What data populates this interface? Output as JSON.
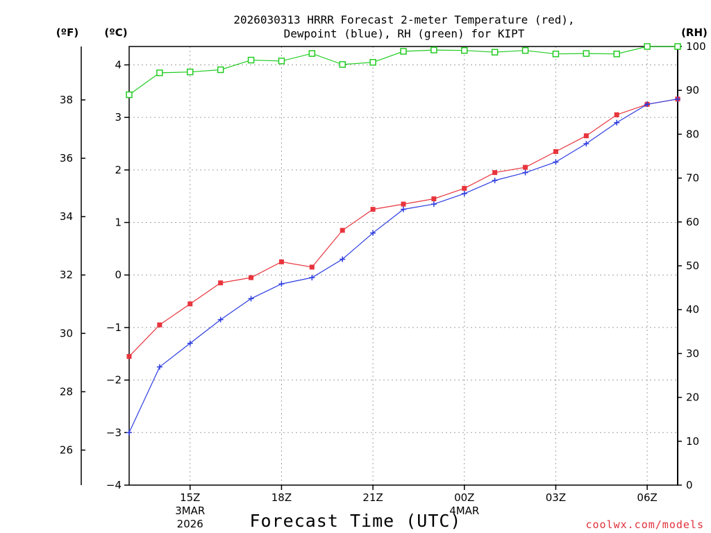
{
  "chart_data": {
    "type": "line",
    "title_lines": [
      "2026030313 HRRR Forecast 2-meter Temperature (red),",
      "Dewpoint (blue), RH (green) for KIPT"
    ],
    "xlabel": "Forecast Time (UTC)",
    "credit": "coolwx.com/models",
    "units": {
      "fahrenheit": "(ºF)",
      "celsius": "(ºC)",
      "rh": "(RH)"
    },
    "x_hours_utc": [
      13,
      14,
      15,
      16,
      17,
      18,
      19,
      20,
      21,
      22,
      23,
      24,
      25,
      26,
      27,
      28,
      29,
      30,
      31
    ],
    "x_range": [
      13,
      31
    ],
    "x_ticks": [
      {
        "hour": 15,
        "label": "15Z",
        "date": "3MAR",
        "year": "2026"
      },
      {
        "hour": 18,
        "label": "18Z"
      },
      {
        "hour": 21,
        "label": "21Z"
      },
      {
        "hour": 24,
        "label": "00Z",
        "date": "4MAR"
      },
      {
        "hour": 27,
        "label": "03Z"
      },
      {
        "hour": 30,
        "label": "06Z"
      }
    ],
    "axes": {
      "celsius": {
        "range": [
          -4,
          4.35
        ],
        "ticks": [
          -4,
          -3,
          -2,
          -1,
          0,
          1,
          2,
          3,
          4
        ]
      },
      "fahrenheit": {
        "ticks": [
          26,
          28,
          30,
          32,
          34,
          36,
          38
        ]
      },
      "rh": {
        "range": [
          0,
          100
        ],
        "ticks": [
          0,
          10,
          20,
          30,
          40,
          50,
          60,
          70,
          80,
          90,
          100
        ]
      }
    },
    "series": [
      {
        "name": "Temperature",
        "unit": "°C",
        "color": "#e8343c",
        "marker": "filled-square",
        "values": [
          -1.55,
          -0.95,
          -0.55,
          -0.15,
          -0.05,
          0.25,
          0.15,
          0.85,
          1.25,
          1.35,
          1.45,
          1.65,
          1.95,
          2.05,
          2.35,
          2.65,
          3.05,
          3.25,
          3.35
        ]
      },
      {
        "name": "Dewpoint",
        "unit": "°C",
        "color": "#2c3ce0",
        "marker": "plus",
        "values": [
          -3.0,
          -1.75,
          -1.3,
          -0.85,
          -0.45,
          -0.17,
          -0.05,
          0.3,
          0.8,
          1.25,
          1.35,
          1.55,
          1.8,
          1.95,
          2.15,
          2.5,
          2.9,
          3.25,
          3.35
        ]
      },
      {
        "name": "RH",
        "unit": "%",
        "color": "#22cc22",
        "marker": "open-square",
        "values": [
          89,
          94,
          94.2,
          94.7,
          96.9,
          96.7,
          98.4,
          95.9,
          96.4,
          98.9,
          99.2,
          99.1,
          98.7,
          99.1,
          98.3,
          98.4,
          98.3,
          100,
          100
        ]
      }
    ],
    "grid": true
  }
}
